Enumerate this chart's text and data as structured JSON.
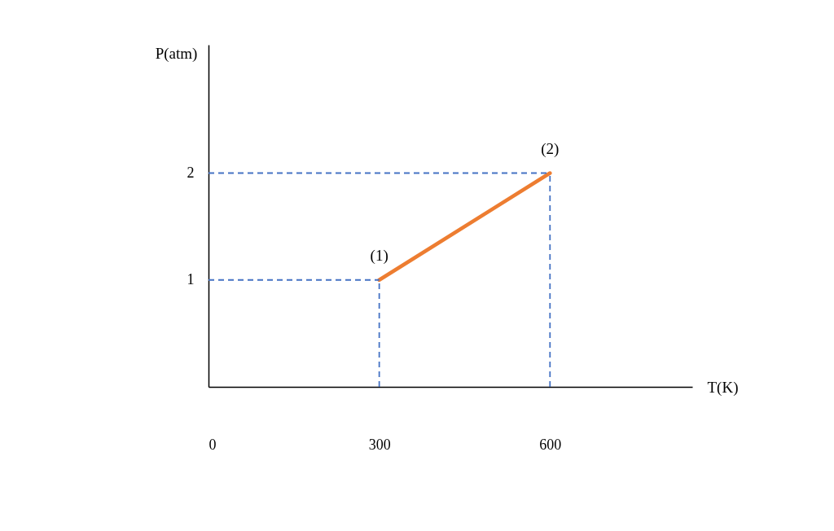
{
  "chart_data": {
    "type": "line",
    "xlabel": "T(K)",
    "ylabel": "P(atm)",
    "x": [
      300,
      600
    ],
    "series": [
      {
        "color": "#ed7d31",
        "values": [
          1,
          2
        ]
      }
    ],
    "xlim": [
      0,
      850
    ],
    "ylim": [
      0,
      3.2
    ],
    "xticks": [
      0,
      300,
      600
    ],
    "yticks": [
      1,
      2
    ],
    "ref_lines": [
      {
        "axis": "y",
        "value": 1,
        "color": "#4472c4",
        "line_style": "dashed"
      },
      {
        "axis": "y",
        "value": 2,
        "color": "#4472c4",
        "line_style": "dashed"
      },
      {
        "axis": "x",
        "value": 300,
        "color": "#4472c4",
        "line_style": "dashed"
      },
      {
        "axis": "x",
        "value": 600,
        "color": "#4472c4",
        "line_style": "dashed"
      }
    ],
    "annotations": [
      {
        "text": "(1)",
        "x": 300,
        "y": 1
      },
      {
        "text": "(2)",
        "x": 600,
        "y": 2
      }
    ]
  }
}
